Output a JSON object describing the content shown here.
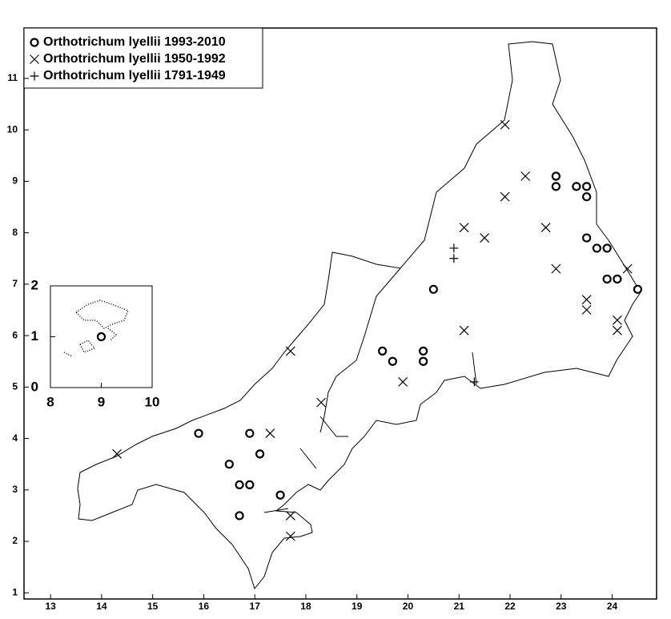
{
  "chart_data": [
    {
      "type": "scatter",
      "xlim": [
        12.48,
        24.87
      ],
      "ylim": [
        0.88,
        11.98
      ],
      "xticks": [
        13,
        14,
        15,
        16,
        17,
        18,
        19,
        20,
        21,
        22,
        23,
        24
      ],
      "yticks": [
        1,
        2,
        3,
        4,
        5,
        6,
        7,
        8,
        9,
        10,
        11
      ],
      "legend": "upper left",
      "series": [
        {
          "name": "Orthotrichum lyellii 1993-2010",
          "marker": "circle",
          "color": "#000000",
          "x": [
            15.9,
            16.9,
            16.5,
            17.1,
            16.7,
            16.9,
            16.7,
            17.5,
            20.5,
            19.5,
            19.7,
            20.3,
            20.3,
            22.9,
            22.9,
            23.3,
            23.5,
            23.5,
            23.5,
            23.7,
            23.9,
            23.9,
            24.1,
            24.5
          ],
          "values": [
            4.1,
            4.1,
            3.5,
            3.7,
            3.1,
            3.1,
            2.5,
            2.9,
            6.9,
            5.7,
            5.5,
            5.7,
            5.5,
            9.1,
            8.9,
            8.9,
            8.9,
            8.7,
            7.9,
            7.7,
            7.7,
            7.1,
            7.1,
            6.9
          ]
        },
        {
          "name": "Orthotrichum lyellii 1950-1992",
          "marker": "x",
          "color": "#000000",
          "x": [
            14.3,
            17.3,
            17.7,
            18.3,
            17.7,
            17.7,
            19.9,
            21.1,
            21.5,
            21.1,
            21.9,
            21.9,
            22.3,
            22.7,
            22.9,
            23.5,
            23.5,
            24.1,
            24.1,
            24.3
          ],
          "values": [
            3.7,
            4.1,
            5.7,
            4.7,
            2.5,
            2.1,
            5.1,
            8.1,
            7.9,
            6.1,
            10.1,
            8.7,
            9.1,
            8.1,
            7.3,
            6.7,
            6.5,
            6.3,
            6.1,
            7.3
          ]
        },
        {
          "name": "Orthotrichum lyellii 1791-1949",
          "marker": "plus",
          "color": "#000000",
          "x": [
            20.9,
            20.9,
            21.3
          ],
          "values": [
            7.7,
            7.5,
            5.1
          ]
        }
      ]
    },
    {
      "type": "scatter",
      "xlim": [
        8,
        10
      ],
      "ylim": [
        0,
        2
      ],
      "xticks": [
        8,
        9,
        10
      ],
      "yticks": [
        0,
        1,
        2
      ],
      "series": [
        {
          "marker": "circle",
          "color": "#000000",
          "x": [
            9.0
          ],
          "values": [
            1.0
          ]
        }
      ]
    }
  ]
}
